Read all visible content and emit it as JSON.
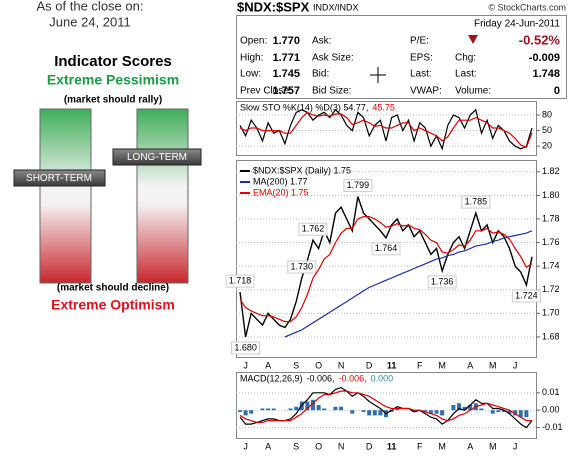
{
  "scores": {
    "as_of": "As of the close on:",
    "date": "June 24, 2011",
    "title": "Indicator Scores",
    "top_label": "Extreme Pessimism",
    "top_note": "(market should rally)",
    "bottom_note": "(market should decline)",
    "bottom_label": "Extreme Optimism",
    "short_term": "SHORT-TERM",
    "long_term": "LONG-TERM"
  },
  "header": {
    "symbol": "$NDX:$SPX",
    "exchange": "INDX/INDX",
    "credit": "© StockCharts.com"
  },
  "quote": {
    "date": "Friday 24-Jun-2011",
    "rows": [
      [
        {
          "label": "Open:",
          "value": "1.770"
        },
        {
          "label": "Ask:"
        },
        {
          "label": "P/E:"
        },
        {
          "value": "-0.52%"
        }
      ],
      [
        {
          "label": "High:",
          "value": "1.771"
        },
        {
          "label": "Ask Size:"
        },
        {
          "label": "EPS:"
        },
        {
          "label": "Chg:",
          "value": "-0.009"
        }
      ],
      [
        {
          "label": "Low:",
          "value": "1.745"
        },
        {
          "label": "Bid:"
        },
        {
          "label": "Last:"
        },
        {
          "label": "Last:",
          "value": "1.748"
        }
      ],
      [
        {
          "label": "Prev Close:",
          "value": "1.757"
        },
        {
          "label": "Bid Size:"
        },
        {
          "label": "VWAP:"
        },
        {
          "label": "Volume:",
          "value": "0"
        }
      ]
    ]
  },
  "chart_data": [
    {
      "type": "line",
      "legend": [
        {
          "text": "Slow STO %K(14) %D(3) 54.77,",
          "color": "#000000"
        },
        {
          "text": "45.75",
          "color": "#dd0000"
        }
      ],
      "ylim": [
        3,
        107
      ],
      "yticks": [
        20,
        50,
        80
      ],
      "grid": true,
      "series": [
        {
          "color": "#000000",
          "style": "line",
          "values": [
            60,
            40,
            70,
            55,
            30,
            65,
            45,
            50,
            25,
            60,
            85,
            90,
            85,
            70,
            80,
            85,
            75,
            90,
            80,
            60,
            50,
            85,
            75,
            40,
            60,
            70,
            30,
            75,
            80,
            50,
            70,
            30,
            65,
            55,
            20,
            40,
            15,
            60,
            80,
            75,
            55,
            80,
            90,
            45,
            70,
            35,
            60,
            50,
            30,
            20,
            15,
            20,
            54.77
          ]
        },
        {
          "color": "#dd0000",
          "style": "line",
          "values": [
            55,
            50,
            55,
            55,
            50,
            50,
            50,
            50,
            45,
            45,
            60,
            75,
            85,
            80,
            78,
            80,
            78,
            82,
            82,
            75,
            62,
            65,
            70,
            65,
            58,
            60,
            55,
            55,
            60,
            65,
            65,
            50,
            55,
            50,
            45,
            40,
            30,
            38,
            55,
            70,
            70,
            70,
            75,
            70,
            65,
            55,
            55,
            50,
            45,
            35,
            22,
            18,
            45.75
          ]
        }
      ]
    },
    {
      "type": "line",
      "ylim": [
        1.663,
        1.83
      ],
      "yticks": [
        {
          "value": 1.68,
          "label": "1.68"
        },
        {
          "value": 1.7,
          "label": "1.70"
        },
        1.72,
        1.74,
        1.76,
        1.78,
        {
          "value": 1.8,
          "label": "1.80"
        },
        1.82
      ],
      "grid": true,
      "categories": [
        null,
        "J",
        null,
        null,
        null,
        "A",
        null,
        null,
        null,
        null,
        "S",
        null,
        null,
        null,
        "O",
        null,
        null,
        null,
        "N",
        null,
        null,
        null,
        null,
        "D",
        null,
        null,
        null,
        "11",
        null,
        null,
        null,
        null,
        "F",
        null,
        null,
        null,
        "M",
        null,
        null,
        null,
        null,
        "A",
        null,
        null,
        null,
        "M",
        null,
        null,
        null,
        "J",
        null,
        null,
        null
      ],
      "series": [
        {
          "name": "$NDX:$SPX (Daily) 1.75",
          "color": "#000000",
          "style": "line",
          "values": [
            1.718,
            1.68,
            1.7,
            1.695,
            1.69,
            1.7,
            1.695,
            1.69,
            1.688,
            1.695,
            1.71,
            1.73,
            1.745,
            1.762,
            1.755,
            1.77,
            1.76,
            1.785,
            1.79,
            1.78,
            1.77,
            1.799,
            1.785,
            1.78,
            1.775,
            1.77,
            1.764,
            1.775,
            1.78,
            1.77,
            1.775,
            1.765,
            1.77,
            1.76,
            1.75,
            1.755,
            1.736,
            1.75,
            1.76,
            1.765,
            1.755,
            1.77,
            1.785,
            1.77,
            1.775,
            1.76,
            1.77,
            1.765,
            1.755,
            1.74,
            1.735,
            1.724,
            1.748
          ],
          "value_labels": [
            "1.718",
            "1.680",
            null,
            null,
            null,
            null,
            null,
            null,
            null,
            null,
            null,
            "1.730",
            null,
            "1.762",
            null,
            null,
            null,
            null,
            null,
            null,
            null,
            "1.799",
            null,
            null,
            null,
            null,
            "1.764",
            null,
            null,
            null,
            null,
            null,
            null,
            null,
            null,
            null,
            "1.736",
            null,
            null,
            null,
            null,
            null,
            "1.785",
            null,
            null,
            null,
            null,
            null,
            null,
            null,
            null,
            "1.724",
            null
          ]
        },
        {
          "name": "MA(200) 1.77",
          "color": "#1a2fa8",
          "style": "line",
          "values": [
            null,
            null,
            null,
            null,
            null,
            null,
            null,
            null,
            1.68,
            1.682,
            1.684,
            1.686,
            1.689,
            1.692,
            1.695,
            1.698,
            1.701,
            1.704,
            1.707,
            1.71,
            1.713,
            1.716,
            1.719,
            1.722,
            1.724,
            1.726,
            1.728,
            1.73,
            1.732,
            1.734,
            1.736,
            1.738,
            1.74,
            1.742,
            1.744,
            1.746,
            1.747,
            1.749,
            1.75,
            1.752,
            1.753,
            1.755,
            1.757,
            1.758,
            1.759,
            1.761,
            1.762,
            1.764,
            1.765,
            1.766,
            1.767,
            1.768,
            1.77
          ]
        },
        {
          "name": "EMA(20) 1.75",
          "color": "#dd0000",
          "style": "line",
          "values": [
            1.712,
            1.705,
            1.702,
            1.7,
            1.698,
            1.698,
            1.697,
            1.695,
            1.693,
            1.693,
            1.697,
            1.705,
            1.716,
            1.73,
            1.737,
            1.746,
            1.75,
            1.76,
            1.768,
            1.772,
            1.772,
            1.78,
            1.782,
            1.782,
            1.78,
            1.777,
            1.773,
            1.774,
            1.776,
            1.774,
            1.775,
            1.772,
            1.771,
            1.767,
            1.762,
            1.76,
            1.752,
            1.751,
            1.754,
            1.758,
            1.757,
            1.762,
            1.77,
            1.77,
            1.772,
            1.768,
            1.769,
            1.767,
            1.763,
            1.755,
            1.748,
            1.739,
            1.742
          ]
        }
      ]
    },
    {
      "type": "line",
      "legend": [
        {
          "text": "MACD(12,26,9)",
          "color": "#000000"
        },
        {
          "text": "-0.006,",
          "color": "#000000"
        },
        {
          "text": "-0.006,",
          "color": "#dd0000"
        },
        {
          "text": "0.000",
          "color": "#2f8fa8"
        }
      ],
      "ylim": [
        -0.016,
        0.022
      ],
      "yticks": [
        0.01,
        {
          "value": 0,
          "label": "0.00"
        },
        -0.01
      ],
      "grid": true,
      "categories": [
        null,
        "J",
        null,
        null,
        null,
        "A",
        null,
        null,
        null,
        null,
        "S",
        null,
        null,
        null,
        "O",
        null,
        null,
        null,
        "N",
        null,
        null,
        null,
        null,
        "D",
        null,
        null,
        null,
        "11",
        null,
        null,
        null,
        null,
        "F",
        null,
        null,
        null,
        "M",
        null,
        null,
        null,
        null,
        "A",
        null,
        null,
        null,
        "M",
        null,
        null,
        null,
        "J",
        null,
        null,
        null
      ],
      "series": [
        {
          "color": "#2f6fb0",
          "style": "bar",
          "values": [
            -0.001,
            -0.003,
            -0.002,
            0,
            0.001,
            0.001,
            0.001,
            0,
            0,
            0.001,
            0.002,
            0.005,
            0.005,
            0.006,
            0.003,
            0.001,
            0,
            0.002,
            0.002,
            0,
            -0.002,
            0,
            -0.001,
            -0.003,
            -0.003,
            -0.003,
            -0.004,
            -0.001,
            0.001,
            0,
            0,
            -0.001,
            0,
            -0.001,
            -0.002,
            -0.002,
            -0.003,
            0,
            0.003,
            0.004,
            0.002,
            0.003,
            0.004,
            0.001,
            0,
            -0.002,
            -0.001,
            -0.001,
            -0.002,
            -0.003,
            -0.004,
            -0.004,
            0
          ]
        },
        {
          "color": "#000000",
          "style": "line",
          "values": [
            -0.004,
            -0.008,
            -0.008,
            -0.007,
            -0.006,
            -0.005,
            -0.005,
            -0.006,
            -0.006,
            -0.005,
            -0.002,
            0.003,
            0.006,
            0.01,
            0.01,
            0.01,
            0.009,
            0.012,
            0.013,
            0.011,
            0.008,
            0.01,
            0.008,
            0.005,
            0.003,
            0.001,
            -0.002,
            0.0,
            0.002,
            0.001,
            0.001,
            -0.001,
            0.0,
            -0.002,
            -0.004,
            -0.005,
            -0.008,
            -0.006,
            -0.002,
            0.001,
            0.0,
            0.003,
            0.006,
            0.004,
            0.004,
            0.001,
            0.001,
            0.0,
            -0.002,
            -0.005,
            -0.008,
            -0.01,
            -0.006
          ]
        },
        {
          "color": "#dd0000",
          "style": "line",
          "values": [
            -0.003,
            -0.005,
            -0.006,
            -0.007,
            -0.007,
            -0.006,
            -0.006,
            -0.006,
            -0.006,
            -0.006,
            -0.004,
            -0.002,
            0.001,
            0.004,
            0.007,
            0.009,
            0.009,
            0.01,
            0.011,
            0.011,
            0.01,
            0.01,
            0.009,
            0.008,
            0.006,
            0.004,
            0.002,
            0.001,
            0.001,
            0.001,
            0.001,
            0.0,
            0.0,
            -0.001,
            -0.002,
            -0.003,
            -0.005,
            -0.006,
            -0.005,
            -0.003,
            -0.002,
            0.0,
            0.002,
            0.003,
            0.004,
            0.003,
            0.002,
            0.001,
            0.0,
            -0.002,
            -0.004,
            -0.006,
            -0.006
          ]
        }
      ]
    }
  ]
}
